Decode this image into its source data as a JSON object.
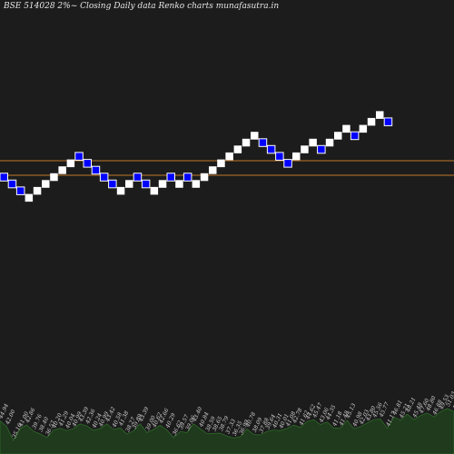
{
  "title": "BSE 514028  2%~  Closing Daily data  Renko  charts munafasutra.in",
  "colors": {
    "background": "#1c1c1c",
    "up_brick": "#ffffff",
    "down_brick": "#0000ff",
    "down_brick_border": "#ffffff",
    "reference_line": "#c07828",
    "volume_fill": "#1f3a1c",
    "volume_stroke": "#2f6a2a"
  },
  "chart_data": {
    "type": "renko",
    "brick_directions": [
      "down",
      "down",
      "down",
      "up",
      "up",
      "up",
      "up",
      "up",
      "up",
      "down",
      "down",
      "down",
      "down",
      "down",
      "up",
      "up",
      "down",
      "down",
      "up",
      "up",
      "down",
      "up",
      "down",
      "up",
      "up",
      "up",
      "up",
      "up",
      "up",
      "up",
      "up",
      "down",
      "down",
      "down",
      "down",
      "up",
      "up",
      "up",
      "down",
      "up",
      "up",
      "up",
      "down",
      "up",
      "up",
      "up",
      "down"
    ],
    "brick_levels": [
      0,
      -1,
      -2,
      -3,
      -2,
      -1,
      0,
      1,
      2,
      3,
      2,
      1,
      0,
      -1,
      -2,
      -1,
      0,
      -1,
      -2,
      -1,
      0,
      -1,
      0,
      -1,
      0,
      1,
      2,
      3,
      4,
      5,
      6,
      5,
      4,
      3,
      2,
      3,
      4,
      5,
      4,
      5,
      6,
      7,
      6,
      7,
      8,
      9,
      8
    ],
    "reference_lines": [
      "upper",
      "lower"
    ],
    "volume_labels": [
      "44.94",
      "42.00",
      "35.16",
      "41.00",
      "42.86",
      "39.76",
      "38.40",
      "36.57",
      "40.20",
      "41.29",
      "40.04",
      "40.99",
      "43.39",
      "42.36",
      "40.24",
      "40.99",
      "43.42",
      "40.58",
      "41.38",
      "38.27",
      "39.89",
      "43.39",
      "39.00",
      "40.62",
      "42.66",
      "40.29",
      "36.62",
      "39.57",
      "39.06",
      "43.40",
      "40.84",
      "38.59",
      "38.65",
      "38.79",
      "37.33",
      "36.35",
      "36.99",
      "40.78",
      "38.09",
      "37.88",
      "39.64",
      "40.31",
      "40.01",
      "41.08",
      "42.78",
      "41.62",
      "44.62",
      "45.47",
      "43.06",
      "44.35",
      "41.18",
      "41.48",
      "45.13",
      "40.98",
      "42.03",
      "43.80",
      "45.56",
      "45.77",
      "41.17",
      "46.81",
      "45.21",
      "48.21",
      "45.48",
      "47.60",
      "48.80",
      "46.88",
      "49.53",
      "51.03",
      "49.53"
    ]
  }
}
